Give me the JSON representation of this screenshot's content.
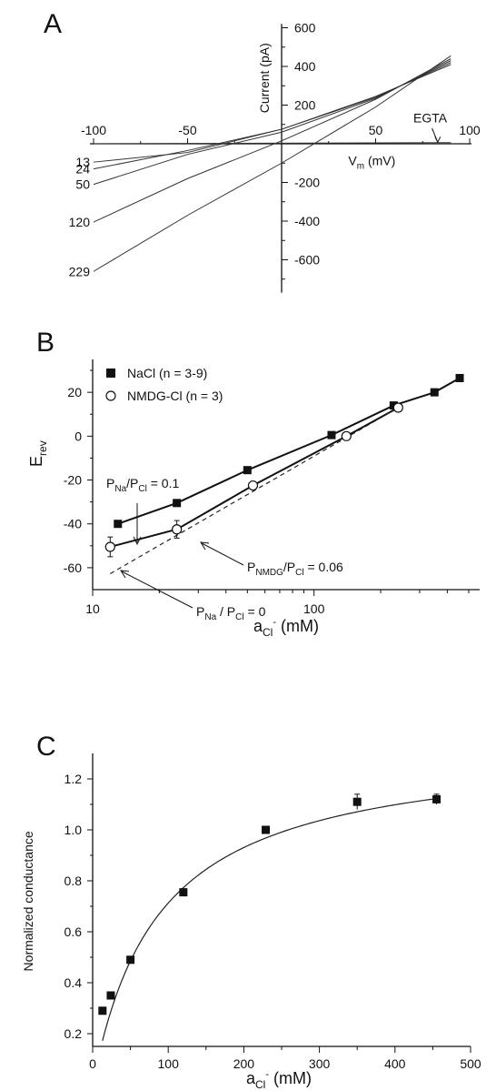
{
  "chart_data": [
    {
      "panel": "A",
      "type": "line",
      "xlabel": "V",
      "xlabel_sub": "m",
      "xlabel_unit": " (mV)",
      "ylabel": "Current (pA)",
      "xlim": [
        -100,
        100
      ],
      "ylim": [
        -700,
        600
      ],
      "xticks": [
        -100,
        -50,
        50,
        100
      ],
      "xtick_labels": [
        "-100",
        "-50",
        "50",
        "100"
      ],
      "yticks": [
        600,
        400,
        200,
        -200,
        -400,
        -600
      ],
      "ytick_labels": [
        "600",
        "400",
        "200",
        "-200",
        "-400",
        "-600"
      ],
      "annotation": "EGTA",
      "series": [
        {
          "name": "13",
          "x": [
            -100,
            -50,
            0,
            50,
            90
          ],
          "y": [
            -95,
            -45,
            75,
            245,
            410
          ]
        },
        {
          "name": "24",
          "x": [
            -100,
            -50,
            0,
            50,
            90
          ],
          "y": [
            -130,
            -35,
            75,
            240,
            420
          ]
        },
        {
          "name": "50",
          "x": [
            -100,
            -50,
            0,
            50,
            90
          ],
          "y": [
            -210,
            -55,
            60,
            235,
            430
          ]
        },
        {
          "name": "120",
          "x": [
            -100,
            -50,
            0,
            50,
            90
          ],
          "y": [
            -405,
            -180,
            15,
            230,
            440
          ]
        },
        {
          "name": "229",
          "x": [
            -100,
            -50,
            0,
            50,
            90
          ],
          "y": [
            -660,
            -370,
            -100,
            190,
            455
          ]
        },
        {
          "name": "EGTA",
          "x": [
            -100,
            90
          ],
          "y": [
            0,
            6
          ]
        }
      ]
    },
    {
      "panel": "B",
      "type": "scatter",
      "xscale": "log",
      "xlabel": "a",
      "xlabel_sub": "Cl",
      "xlabel_sup": "-",
      "xlabel_unit": " (mM)",
      "ylabel": "E",
      "ylabel_sub": "rev",
      "xlim": [
        10,
        560
      ],
      "ylim": [
        -70,
        35
      ],
      "xticks": [
        10,
        100
      ],
      "xtick_labels": [
        "10",
        "100"
      ],
      "yticks": [
        20,
        0,
        -20,
        -40,
        -60
      ],
      "ytick_labels": [
        "20",
        "0",
        "-20",
        "-40",
        "-60"
      ],
      "legend_position": "top-left",
      "series": [
        {
          "name": "NaCl (n = 3-9)",
          "marker": "filled-square",
          "x": [
            13,
            24,
            50,
            120,
            229,
            350,
            455
          ],
          "y": [
            -40,
            -30.5,
            -15.5,
            0.5,
            14,
            20,
            26.5
          ]
        },
        {
          "name": "NMDG-Cl (n = 3)",
          "marker": "open-circle",
          "x": [
            12,
            24,
            53,
            140,
            240
          ],
          "y": [
            -50.5,
            -42.5,
            -22.5,
            0,
            13
          ],
          "err": [
            4.5,
            4,
            1,
            0.5,
            0.5
          ]
        }
      ],
      "annotations": [
        {
          "text": "P",
          "sub1": "Na",
          "mid": "/P",
          "sub2": "Cl",
          "tail": " = 0.1"
        },
        {
          "text": "P",
          "sub1": "NMDG",
          "mid": "/P",
          "sub2": "Cl",
          "tail": " = 0.06"
        },
        {
          "text": "P",
          "sub1": "Na",
          "mid": " / P",
          "sub2": "Cl",
          "tail": " = 0"
        }
      ]
    },
    {
      "panel": "C",
      "type": "scatter",
      "xlabel": "a",
      "xlabel_sub": "Cl",
      "xlabel_sup": "-",
      "xlabel_unit": " (mM)",
      "ylabel": "Normalized conductance",
      "xlim": [
        0,
        500
      ],
      "ylim": [
        0.15,
        1.3
      ],
      "xticks": [
        0,
        100,
        200,
        300,
        400,
        500
      ],
      "xtick_labels": [
        "0",
        "100",
        "200",
        "300",
        "400",
        "500"
      ],
      "yticks": [
        0.2,
        0.4,
        0.6,
        0.8,
        1.0,
        1.2
      ],
      "ytick_labels": [
        "0.2",
        "0.4",
        "0.6",
        "0.8",
        "1.0",
        "1.2"
      ],
      "series": [
        {
          "name": "",
          "marker": "filled-square",
          "x": [
            13,
            24,
            50,
            120,
            229,
            350,
            455
          ],
          "y": [
            0.29,
            0.35,
            0.49,
            0.755,
            1.0,
            1.11,
            1.12
          ],
          "err": [
            0,
            0,
            0,
            0,
            0,
            0.03,
            0.02
          ]
        }
      ],
      "fit": {
        "type": "michaelis-menten",
        "gmax": 1.34,
        "k": 88
      }
    }
  ],
  "panels": {
    "a": "A",
    "b": "B",
    "c": "C"
  }
}
